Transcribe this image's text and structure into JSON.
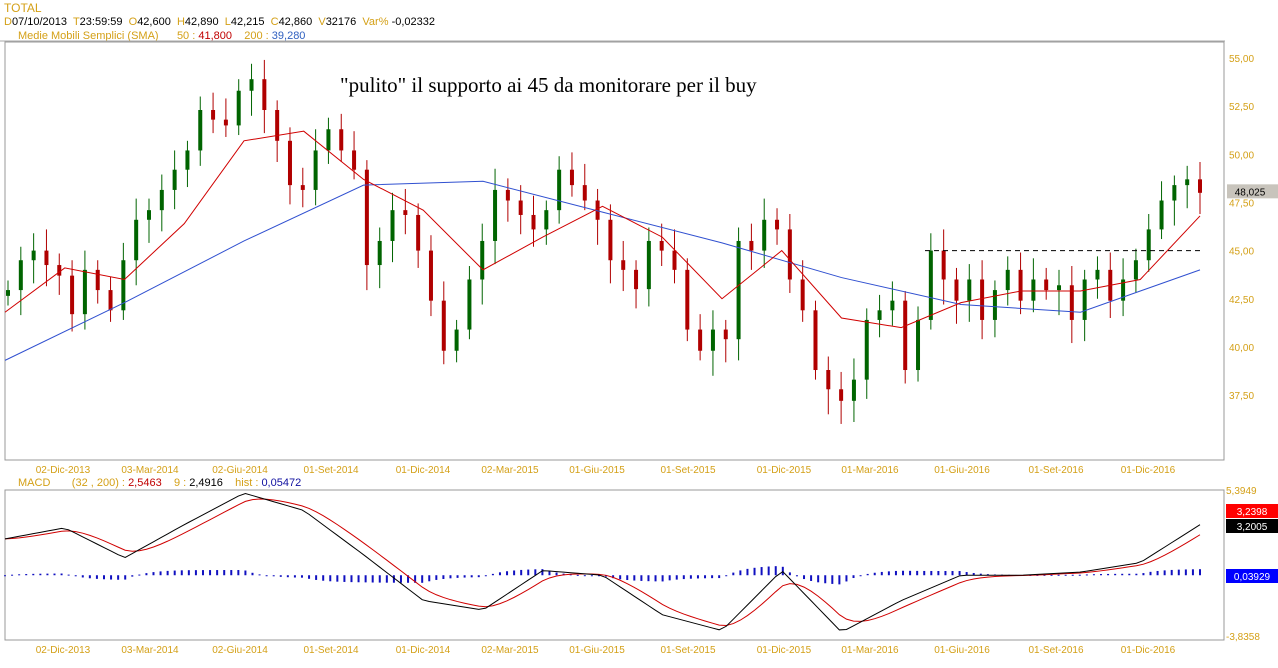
{
  "header": {
    "symbol": "TOTAL",
    "D": "07/10/2013",
    "T": "23:59:59",
    "O": "42,600",
    "H": "42,890",
    "L": "42,215",
    "C": "42,860",
    "V": "32176",
    "var_label": "Var%",
    "var": "-0,02332",
    "sma_label": "Medie Mobili Semplici (SMA)",
    "sma50_label": "50 :",
    "sma50": "41,800",
    "sma200_label": "200 :",
    "sma200": "39,280"
  },
  "macd_header": {
    "label": "MACD",
    "params": "(32 , 200) :",
    "macd": "2,5463",
    "signal_label": "9 :",
    "signal": "2,4916",
    "hist_label": "hist :",
    "hist": "0,05472"
  },
  "annotation": "\"pulito\" il supporto ai 45 da monitorare per il buy",
  "colors": {
    "up": "#006400",
    "down": "#b00000",
    "sma50": "#d00000",
    "sma200": "#3050d0",
    "macd": "#000000",
    "signal": "#d00000",
    "hist": "#1010c0",
    "axis_text": "#d4a017"
  },
  "chart_data": [
    {
      "type": "candlestick",
      "title": "TOTAL",
      "x_tick_labels": [
        "02-Dic-2013",
        "03-Mar-2014",
        "02-Giu-2014",
        "01-Set-2014",
        "01-Dic-2014",
        "02-Mar-2015",
        "01-Giu-2015",
        "01-Set-2015",
        "01-Dic-2015",
        "01-Mar-2016",
        "01-Giu-2016",
        "01-Set-2016",
        "01-Dic-2016"
      ],
      "y_tick_labels": [
        "55,00",
        "52,50",
        "50,00",
        "47,50",
        "45,00",
        "42,50",
        "40,00",
        "37,50"
      ],
      "ylim": [
        35.5,
        55.5
      ],
      "last_price_label": "48,025",
      "closes": [
        42.95,
        44.5,
        45.0,
        44.25,
        43.7,
        41.7,
        44.0,
        42.95,
        41.9,
        44.5,
        46.6,
        47.1,
        48.15,
        49.2,
        50.2,
        52.3,
        51.8,
        51.5,
        53.3,
        53.9,
        52.3,
        50.7,
        48.4,
        48.15,
        50.2,
        51.3,
        50.2,
        49.2,
        44.25,
        45.5,
        47.1,
        46.85,
        45.0,
        42.4,
        39.8,
        40.9,
        43.5,
        45.5,
        48.15,
        47.6,
        46.85,
        46.1,
        47.1,
        49.2,
        48.4,
        47.6,
        46.6,
        44.5,
        44.0,
        43.0,
        45.5,
        45.0,
        44.0,
        40.9,
        39.8,
        40.9,
        40.4,
        45.5,
        45.0,
        46.6,
        46.1,
        43.5,
        41.9,
        38.8,
        37.8,
        37.2,
        38.3,
        41.4,
        41.9,
        42.4,
        38.8,
        41.4,
        45.0,
        43.5,
        42.4,
        43.5,
        41.4,
        42.95,
        44.0,
        42.4,
        43.5,
        42.95,
        43.2,
        41.4,
        43.5,
        44.0,
        42.4,
        43.5,
        44.5,
        46.1,
        47.6,
        48.4,
        48.7,
        48.0
      ],
      "sma50": [
        41.8,
        44.1,
        43.5,
        46.4,
        50.7,
        51.2,
        48.7,
        47.1,
        44.0,
        45.7,
        47.3,
        45.7,
        42.5,
        45.0,
        41.5,
        41.0,
        42.3,
        42.9,
        42.9,
        43.5,
        46.8
      ],
      "sma200": [
        39.3,
        42.3,
        45.5,
        48.4,
        48.6,
        47.0,
        45.4,
        43.6,
        42.2,
        41.8,
        44.0
      ],
      "support_level": 45
    },
    {
      "type": "line",
      "title": "MACD",
      "y_tick_labels": [
        "5,3949",
        "-3,8358"
      ],
      "ylim": [
        -3.8358,
        5.3949
      ],
      "macd": [
        2.3,
        3.0,
        1.1,
        3.2,
        5.2,
        4.1,
        1.3,
        -1.6,
        -2.2,
        0.3,
        0.0,
        -2.5,
        -3.5,
        0.3,
        -3.6,
        -1.6,
        0.0,
        0.0,
        0.2,
        0.8,
        3.2
      ],
      "last_labels": {
        "signal": "3,2398",
        "macd": "3,2005",
        "hist": "0,03929"
      }
    }
  ]
}
